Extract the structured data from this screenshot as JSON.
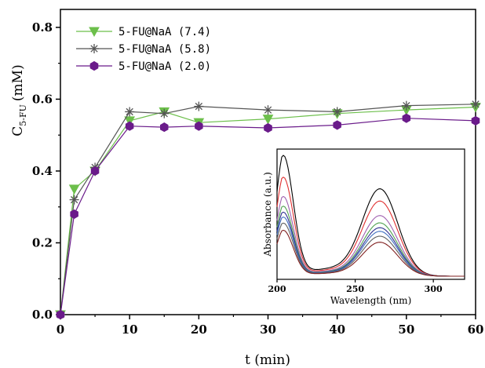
{
  "chart_data": {
    "type": "line",
    "title": "",
    "xlabel": "t (min)",
    "ylabel_main": "C",
    "ylabel_sub": "5-FU",
    "ylabel_unit": "(mM)",
    "xlim": [
      0,
      60
    ],
    "ylim": [
      0,
      0.85
    ],
    "xticks": [
      0,
      10,
      20,
      30,
      40,
      50,
      60
    ],
    "yticks": [
      0.0,
      0.2,
      0.4,
      0.6,
      0.8
    ],
    "xtick_labels": [
      "0",
      "10",
      "20",
      "30",
      "40",
      "50",
      "60"
    ],
    "ytick_labels": [
      "0.0",
      "0.2",
      "0.4",
      "0.6",
      "0.8"
    ],
    "legend_position": "top-left",
    "grid": false,
    "series": [
      {
        "name": "5-FU@NaA (7.4)",
        "marker": "triangle-down",
        "color": "#6cbf4b",
        "x": [
          0,
          2,
          5,
          10,
          15,
          20,
          30,
          40,
          50,
          60
        ],
        "y": [
          0.0,
          0.35,
          0.4,
          0.54,
          0.565,
          0.535,
          0.545,
          0.56,
          0.57,
          0.578
        ]
      },
      {
        "name": "5-FU@NaA (5.8)",
        "marker": "asterisk",
        "color": "#555555",
        "x": [
          0,
          2,
          5,
          10,
          15,
          20,
          30,
          40,
          50,
          60
        ],
        "y": [
          0.0,
          0.32,
          0.41,
          0.565,
          0.56,
          0.58,
          0.57,
          0.565,
          0.582,
          0.586
        ]
      },
      {
        "name": "5-FU@NaA (2.0)",
        "marker": "hexagon",
        "color": "#6a1b8a",
        "x": [
          0,
          2,
          5,
          10,
          15,
          20,
          30,
          40,
          50,
          60
        ],
        "y": [
          0.0,
          0.28,
          0.4,
          0.525,
          0.522,
          0.525,
          0.52,
          0.528,
          0.547,
          0.54
        ]
      }
    ],
    "inset": {
      "type": "line",
      "xlabel": "Wavelength (nm)",
      "ylabel": "Absorbance (a.u.)",
      "xlim": [
        200,
        320
      ],
      "xticks": [
        200,
        250,
        300
      ],
      "xtick_labels": [
        "200",
        "250",
        "300"
      ],
      "curves": [
        {
          "color": "#000000",
          "peak1": 1.0,
          "peak2": 0.72
        },
        {
          "color": "#e03030",
          "peak1": 0.82,
          "peak2": 0.62
        },
        {
          "color": "#a060b0",
          "peak1": 0.66,
          "peak2": 0.5
        },
        {
          "color": "#50a050",
          "peak1": 0.58,
          "peak2": 0.44
        },
        {
          "color": "#303090",
          "peak1": 0.53,
          "peak2": 0.4
        },
        {
          "color": "#4070c0",
          "peak1": 0.49,
          "peak2": 0.37
        },
        {
          "color": "#606060",
          "peak1": 0.44,
          "peak2": 0.33
        },
        {
          "color": "#802020",
          "peak1": 0.38,
          "peak2": 0.28
        }
      ]
    }
  }
}
